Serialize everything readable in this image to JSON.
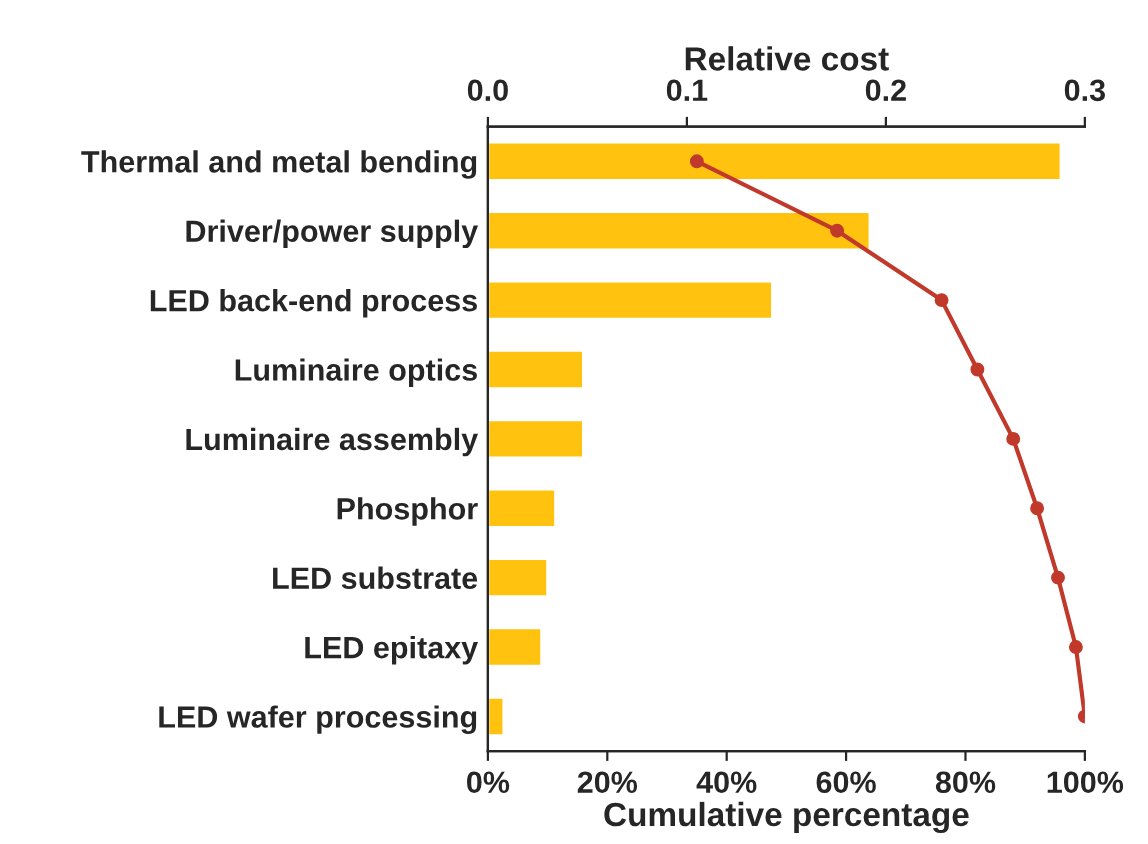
{
  "chart_data": {
    "type": "bar",
    "orientation": "horizontal",
    "xlabel": "Cumulative percentage",
    "x2label": "Relative cost",
    "categories": [
      "Thermal and metal bending",
      "Driver/power supply",
      "LED back-end process",
      "Luminaire optics",
      "Luminaire assembly",
      "Phosphor",
      "LED substrate",
      "LED epitaxy",
      "LED wafer processing"
    ],
    "series": [
      {
        "type": "bar",
        "axis": "x2",
        "color": "#ffc20e",
        "values": [
          0.288,
          0.192,
          0.143,
          0.048,
          0.048,
          0.034,
          0.03,
          0.027,
          0.008
        ]
      },
      {
        "type": "line",
        "color": "#c0392b",
        "values": [
          35,
          58.5,
          76,
          82,
          88,
          92,
          95.5,
          98.5,
          100
        ]
      }
    ],
    "xlim": [
      0,
      100
    ],
    "xticks": [
      {
        "value": 0,
        "label": "0%"
      },
      {
        "value": 20,
        "label": "20%"
      },
      {
        "value": 40,
        "label": "40%"
      },
      {
        "value": 60,
        "label": "60%"
      },
      {
        "value": 80,
        "label": "80%"
      },
      {
        "value": 100,
        "label": "100%"
      }
    ],
    "x2lim": [
      0,
      0.3
    ],
    "x2ticks": [
      {
        "value": 0,
        "label": "0.0"
      },
      {
        "value": 0.1,
        "label": "0.1"
      },
      {
        "value": 0.2,
        "label": "0.2"
      },
      {
        "value": 0.3,
        "label": "0.3"
      }
    ],
    "marker": "circle",
    "line_style": "solid",
    "grid": false,
    "legend": false
  }
}
